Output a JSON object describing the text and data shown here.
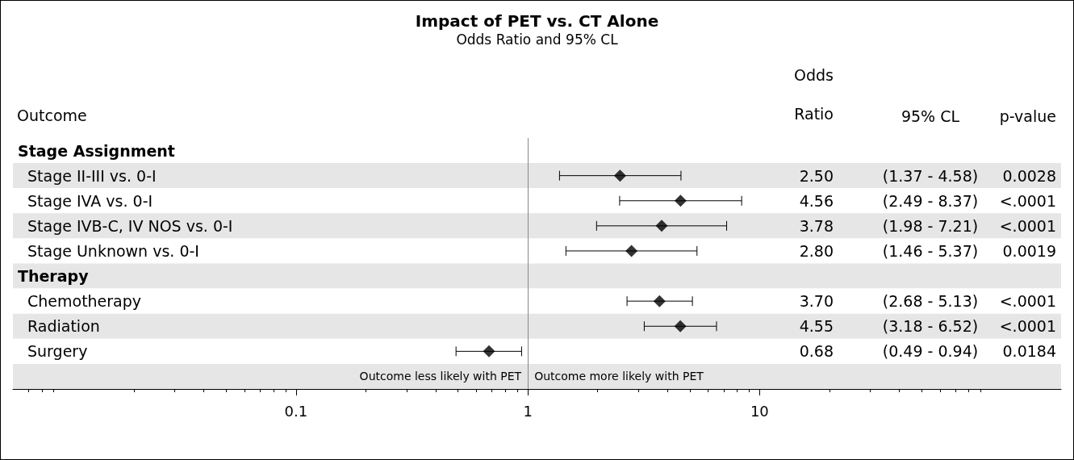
{
  "chart_data": {
    "type": "scatter",
    "orientation": "horizontal",
    "title": "Impact of PET vs. CT Alone",
    "subtitle": "Odds Ratio and 95% CL",
    "ylabel": "Outcome",
    "categories": [
      "Stage Assignment",
      "Stage II-III vs. 0-I",
      "Stage IVA vs. 0-I",
      "Stage IVB-C, IV NOS vs. 0-I",
      "Stage Unknown vs. 0-I",
      "Therapy",
      "Chemotherapy",
      "Radiation",
      "Surgery"
    ],
    "values": [
      null,
      2.5,
      4.56,
      3.78,
      2.8,
      null,
      3.7,
      4.55,
      0.68
    ],
    "errors": [
      null,
      [
        1.37,
        4.58
      ],
      [
        2.49,
        8.37
      ],
      [
        1.98,
        7.21
      ],
      [
        1.46,
        5.37
      ],
      null,
      [
        2.68,
        5.13
      ],
      [
        3.18,
        6.52
      ],
      [
        0.49,
        0.94
      ]
    ],
    "color": "#000000",
    "marker": "diamond",
    "log": "x",
    "xlim": [
      0.006,
      200
    ],
    "xticks": [
      0.1,
      1,
      10
    ],
    "ref_lines": [
      {
        "axis": "x",
        "value": 1,
        "color": "#888888"
      }
    ],
    "annotations": [
      "Odds Ratio",
      "95% CL",
      "p-value",
      "Outcome less likely with PET",
      "Outcome more likely with PET",
      "2.50",
      "(1.37 - 4.58)",
      "0.0028",
      "4.56",
      "(2.49 - 8.37)",
      "<.0001",
      "3.78",
      "(1.98 - 7.21)",
      "<.0001",
      "2.80",
      "(1.46 - 5.37)",
      "0.0019",
      "3.70",
      "(2.68 - 5.13)",
      "<.0001",
      "4.55",
      "(3.18 - 6.52)",
      "<.0001",
      "0.68",
      "(0.49 - 0.94)",
      "0.0184"
    ]
  }
}
